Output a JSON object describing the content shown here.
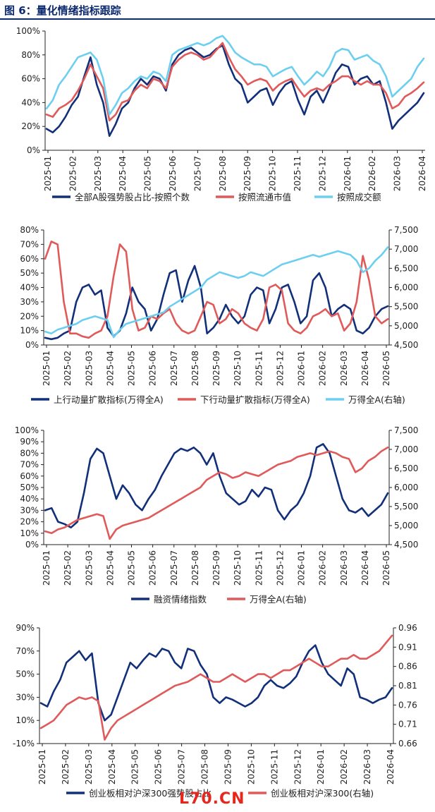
{
  "figure_title": "图 6：量化情绪指标跟踪",
  "watermark": "L70.CN",
  "colors": {
    "navy": "#12307a",
    "red": "#e05a5a",
    "cyan": "#6dcff0",
    "axis": "#222222"
  },
  "chart_data": [
    {
      "type": "line",
      "dual_axis": false,
      "xlabels": [
        "2025-01",
        "2025-02",
        "2025-03",
        "2025-04",
        "2025-05",
        "2025-06",
        "2025-07",
        "2025-08",
        "2025-09",
        "2025-10",
        "2025-11",
        "2025-12",
        "2026-01",
        "2026-02",
        "2026-03",
        "2026-04"
      ],
      "left_axis": {
        "min": 0,
        "max": 100,
        "ticks": [
          "0%",
          "20%",
          "40%",
          "60%",
          "80%",
          "100%"
        ]
      },
      "series": [
        {
          "name": "全部A股强势股占比-按照个数",
          "color": "#12307a",
          "axis": "left",
          "values": [
            18,
            15,
            20,
            28,
            38,
            45,
            62,
            78,
            55,
            40,
            12,
            22,
            35,
            40,
            52,
            60,
            55,
            62,
            60,
            50,
            72,
            80,
            84,
            86,
            82,
            78,
            80,
            85,
            88,
            72,
            60,
            55,
            40,
            45,
            50,
            52,
            38,
            48,
            55,
            58,
            42,
            30,
            45,
            50,
            40,
            52,
            65,
            72,
            70,
            55,
            60,
            62,
            55,
            58,
            40,
            18,
            25,
            30,
            35,
            40,
            48
          ]
        },
        {
          "name": "按照流通市值",
          "color": "#e05a5a",
          "axis": "left",
          "values": [
            30,
            28,
            35,
            38,
            42,
            50,
            60,
            72,
            62,
            52,
            25,
            30,
            40,
            42,
            50,
            55,
            52,
            60,
            58,
            52,
            70,
            76,
            80,
            82,
            80,
            76,
            78,
            84,
            90,
            78,
            68,
            62,
            55,
            58,
            60,
            58,
            50,
            55,
            58,
            60,
            52,
            45,
            50,
            52,
            50,
            55,
            58,
            62,
            62,
            58,
            55,
            58,
            55,
            55,
            48,
            35,
            38,
            45,
            48,
            52,
            57
          ]
        },
        {
          "name": "按照成交额",
          "color": "#6dcff0",
          "axis": "left",
          "values": [
            35,
            42,
            55,
            62,
            70,
            78,
            80,
            82,
            76,
            60,
            30,
            38,
            48,
            52,
            58,
            62,
            60,
            66,
            64,
            58,
            80,
            84,
            86,
            88,
            90,
            88,
            90,
            94,
            96,
            90,
            82,
            78,
            75,
            72,
            72,
            70,
            62,
            65,
            68,
            70,
            62,
            55,
            60,
            66,
            62,
            70,
            82,
            85,
            84,
            76,
            78,
            80,
            75,
            72,
            62,
            45,
            50,
            55,
            60,
            70,
            77
          ]
        }
      ],
      "legend_position": "bottom"
    },
    {
      "type": "line",
      "dual_axis": true,
      "xlabels": [
        "2025-01",
        "2025-02",
        "2025-03",
        "2025-04",
        "2025-05",
        "2025-06",
        "2025-07",
        "2025-08",
        "2025-09",
        "2025-10",
        "2025-11",
        "2025-12",
        "2026-01",
        "2026-02",
        "2026-03",
        "2026-04",
        "2026-05"
      ],
      "left_axis": {
        "min": 0,
        "max": 80,
        "ticks": [
          "0%",
          "10%",
          "20%",
          "30%",
          "40%",
          "50%",
          "60%",
          "70%",
          "80%"
        ]
      },
      "right_axis": {
        "min": 4500,
        "max": 7500,
        "ticks": [
          "4,500",
          "5,000",
          "5,500",
          "6,000",
          "6,500",
          "7,000",
          "7,500"
        ]
      },
      "series": [
        {
          "name": "上行动量扩散指标(万得全A)",
          "color": "#12307a",
          "axis": "left",
          "values": [
            5,
            4,
            5,
            8,
            10,
            30,
            40,
            42,
            35,
            38,
            12,
            6,
            10,
            22,
            40,
            30,
            25,
            10,
            18,
            35,
            50,
            52,
            30,
            45,
            55,
            40,
            8,
            12,
            18,
            28,
            20,
            15,
            20,
            35,
            40,
            38,
            15,
            25,
            40,
            42,
            30,
            15,
            20,
            45,
            50,
            40,
            20,
            25,
            28,
            25,
            10,
            8,
            12,
            20,
            25,
            27
          ]
        },
        {
          "name": "下行动量扩散指标(万得全A)",
          "color": "#e05a5a",
          "axis": "left",
          "values": [
            60,
            72,
            70,
            30,
            8,
            8,
            6,
            5,
            8,
            10,
            20,
            48,
            70,
            65,
            25,
            10,
            12,
            20,
            18,
            22,
            25,
            15,
            10,
            8,
            10,
            20,
            30,
            28,
            15,
            18,
            25,
            22,
            15,
            12,
            10,
            18,
            40,
            42,
            38,
            15,
            10,
            8,
            12,
            20,
            22,
            25,
            20,
            22,
            10,
            15,
            30,
            62,
            45,
            20,
            15,
            18
          ]
        },
        {
          "name": "万得全A(右轴)",
          "color": "#6dcff0",
          "axis": "right",
          "values": [
            4850,
            4800,
            4900,
            4950,
            5000,
            5050,
            5150,
            5200,
            5250,
            5200,
            5150,
            4700,
            4900,
            5050,
            5100,
            5150,
            5200,
            5250,
            5300,
            5350,
            5500,
            5600,
            5700,
            5800,
            5900,
            6000,
            6200,
            6300,
            6400,
            6350,
            6300,
            6250,
            6300,
            6400,
            6350,
            6300,
            6400,
            6500,
            6600,
            6650,
            6700,
            6750,
            6800,
            6850,
            6800,
            6850,
            6900,
            6950,
            6900,
            6850,
            6700,
            6400,
            6500,
            6700,
            6850,
            7050
          ]
        }
      ],
      "legend_position": "bottom"
    },
    {
      "type": "line",
      "dual_axis": true,
      "xlabels": [
        "2025-01",
        "2025-02",
        "2025-03",
        "2025-04",
        "2025-05",
        "2025-06",
        "2025-07",
        "2025-08",
        "2025-09",
        "2025-10",
        "2025-11",
        "2025-12",
        "2026-01",
        "2026-02",
        "2026-03",
        "2026-04",
        "2026-05"
      ],
      "left_axis": {
        "min": 0,
        "max": 100,
        "ticks": [
          "0%",
          "10%",
          "20%",
          "30%",
          "40%",
          "50%",
          "60%",
          "70%",
          "80%",
          "90%",
          "100%"
        ]
      },
      "right_axis": {
        "min": 4500,
        "max": 7500,
        "ticks": [
          "4,500",
          "5,000",
          "5,500",
          "6,000",
          "6,500",
          "7,000",
          "7,500"
        ]
      },
      "series": [
        {
          "name": "融资情绪指数",
          "color": "#12307a",
          "axis": "left",
          "values": [
            30,
            32,
            20,
            18,
            15,
            20,
            45,
            75,
            84,
            80,
            60,
            40,
            52,
            45,
            35,
            30,
            40,
            48,
            60,
            70,
            80,
            84,
            82,
            85,
            80,
            70,
            80,
            60,
            45,
            40,
            35,
            38,
            48,
            42,
            50,
            48,
            30,
            22,
            30,
            35,
            45,
            60,
            85,
            88,
            80,
            60,
            40,
            30,
            28,
            32,
            25,
            30,
            35,
            45
          ]
        },
        {
          "name": "万得全A(右轴)",
          "color": "#e05a5a",
          "axis": "right",
          "values": [
            4850,
            4800,
            4900,
            4950,
            5050,
            5150,
            5200,
            5250,
            5300,
            5250,
            4650,
            4900,
            5000,
            5050,
            5100,
            5150,
            5200,
            5300,
            5400,
            5500,
            5600,
            5700,
            5800,
            5900,
            6000,
            6200,
            6300,
            6400,
            6350,
            6250,
            6300,
            6400,
            6350,
            6300,
            6400,
            6500,
            6600,
            6650,
            6700,
            6800,
            6850,
            6900,
            6850,
            6900,
            6950,
            6900,
            6800,
            6750,
            6400,
            6500,
            6700,
            6800,
            6950,
            7050
          ]
        }
      ],
      "legend_position": "bottom"
    },
    {
      "type": "line",
      "dual_axis": true,
      "xlabels": [
        "2025-01",
        "2025-02",
        "2025-03",
        "2025-04",
        "2025-05",
        "2025-06",
        "2025-07",
        "2025-08",
        "2025-09",
        "2025-10",
        "2025-11",
        "2025-12",
        "2026-01",
        "2026-02",
        "2026-03",
        "2026-04"
      ],
      "left_axis": {
        "min": -10,
        "max": 90,
        "ticks": [
          "-10%",
          "10%",
          "30%",
          "50%",
          "70%",
          "90%"
        ]
      },
      "right_axis": {
        "min": 0.66,
        "max": 0.96,
        "ticks": [
          "0.66",
          "0.71",
          "0.76",
          "0.81",
          "0.86",
          "0.91",
          "0.96"
        ]
      },
      "series": [
        {
          "name": "创业板相对沪深300强势股占比",
          "color": "#12307a",
          "axis": "left",
          "values": [
            25,
            22,
            35,
            45,
            60,
            65,
            70,
            62,
            68,
            25,
            10,
            15,
            30,
            45,
            60,
            55,
            62,
            68,
            65,
            72,
            70,
            60,
            55,
            72,
            70,
            58,
            50,
            30,
            25,
            30,
            28,
            25,
            22,
            25,
            30,
            40,
            45,
            40,
            38,
            42,
            48,
            60,
            70,
            75,
            60,
            50,
            45,
            40,
            55,
            50,
            30,
            28,
            25,
            28,
            30,
            38
          ]
        },
        {
          "name": "创业板相对沪深300(右轴)",
          "color": "#e05a5a",
          "axis": "right",
          "values": [
            0.7,
            0.71,
            0.72,
            0.74,
            0.76,
            0.77,
            0.78,
            0.775,
            0.78,
            0.77,
            0.67,
            0.7,
            0.72,
            0.73,
            0.74,
            0.75,
            0.76,
            0.77,
            0.78,
            0.79,
            0.8,
            0.81,
            0.815,
            0.82,
            0.83,
            0.84,
            0.83,
            0.82,
            0.82,
            0.83,
            0.84,
            0.83,
            0.82,
            0.83,
            0.84,
            0.84,
            0.83,
            0.84,
            0.85,
            0.85,
            0.86,
            0.87,
            0.88,
            0.87,
            0.86,
            0.86,
            0.87,
            0.88,
            0.88,
            0.89,
            0.88,
            0.88,
            0.89,
            0.9,
            0.92,
            0.94
          ]
        }
      ],
      "legend_position": "bottom"
    }
  ]
}
